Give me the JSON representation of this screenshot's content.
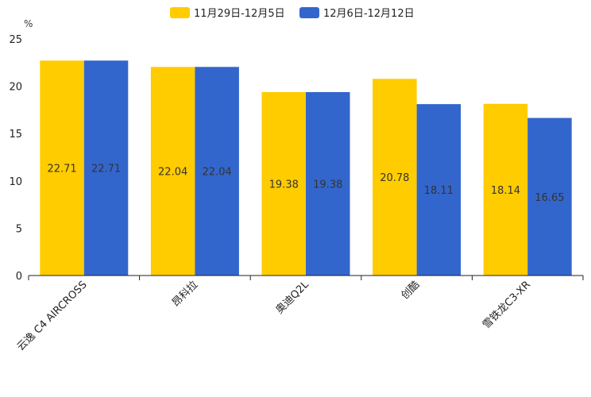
{
  "chart_data": {
    "type": "bar",
    "title": "",
    "xlabel": "",
    "ylabel": "%",
    "ylim": [
      0,
      25
    ],
    "yticks": [
      0,
      5,
      10,
      15,
      20,
      25
    ],
    "categories": [
      "云逸 C4 AIRCROSS",
      "昂科拉",
      "奥迪Q2L",
      "创酷",
      "雪铁龙C3-XR"
    ],
    "series": [
      {
        "name": "11月29日-12月5日",
        "color": "#FFCC00",
        "values": [
          22.71,
          22.04,
          19.38,
          20.78,
          18.14
        ]
      },
      {
        "name": "12月6日-12月12日",
        "color": "#3366CC",
        "values": [
          22.71,
          22.04,
          19.38,
          18.11,
          16.65
        ]
      }
    ],
    "legend": "top-center",
    "grid": false
  }
}
